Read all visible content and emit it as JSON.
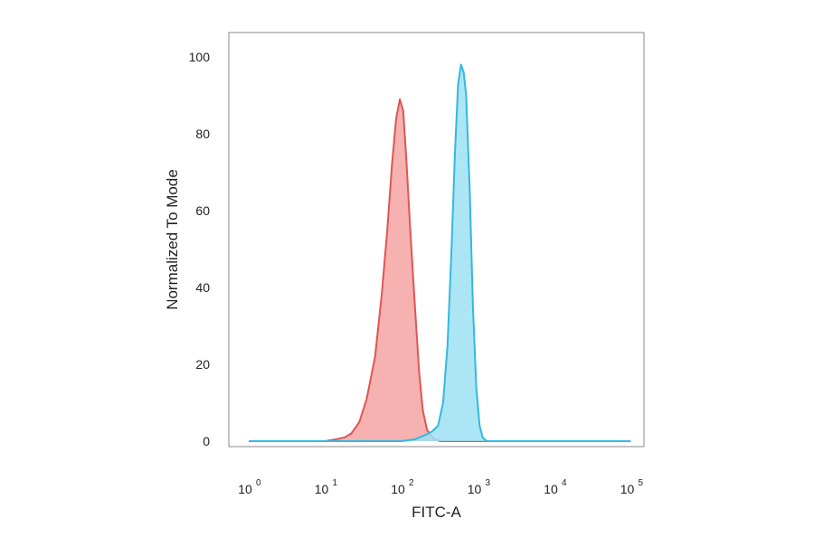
{
  "chart_data": {
    "type": "area",
    "xlabel": "FITC-A",
    "ylabel": "Normalized To Mode",
    "x_scale": "log",
    "xlim": [
      1,
      100000
    ],
    "ylim": [
      0,
      100
    ],
    "x_ticks": [
      {
        "base": "10",
        "exp": "0",
        "value": 1
      },
      {
        "base": "10",
        "exp": "1",
        "value": 10
      },
      {
        "base": "10",
        "exp": "2",
        "value": 100
      },
      {
        "base": "10",
        "exp": "3",
        "value": 1000
      },
      {
        "base": "10",
        "exp": "4",
        "value": 10000
      },
      {
        "base": "10",
        "exp": "5",
        "value": 100000
      }
    ],
    "y_ticks": [
      "0",
      "20",
      "40",
      "60",
      "80",
      "100"
    ],
    "grid": false,
    "series": [
      {
        "color": "#e05555",
        "fill": "#f4a3a3",
        "points": [
          [
            1,
            0
          ],
          [
            10,
            0
          ],
          [
            14,
            0.5
          ],
          [
            18,
            1
          ],
          [
            22,
            2
          ],
          [
            28,
            5
          ],
          [
            35,
            11
          ],
          [
            45,
            22
          ],
          [
            55,
            38
          ],
          [
            65,
            55
          ],
          [
            75,
            72
          ],
          [
            85,
            84
          ],
          [
            95,
            89
          ],
          [
            105,
            86
          ],
          [
            115,
            74
          ],
          [
            130,
            55
          ],
          [
            150,
            35
          ],
          [
            170,
            18
          ],
          [
            190,
            8
          ],
          [
            215,
            3
          ],
          [
            240,
            1.5
          ],
          [
            270,
            0.5
          ],
          [
            320,
            0
          ],
          [
            100000,
            0
          ]
        ]
      },
      {
        "color": "#33b9e0",
        "fill": "#9de0f2",
        "points": [
          [
            1,
            0
          ],
          [
            100,
            0
          ],
          [
            150,
            0.5
          ],
          [
            200,
            1.5
          ],
          [
            250,
            2.5
          ],
          [
            300,
            4
          ],
          [
            350,
            10
          ],
          [
            400,
            25
          ],
          [
            450,
            50
          ],
          [
            500,
            75
          ],
          [
            550,
            93
          ],
          [
            600,
            98
          ],
          [
            650,
            96
          ],
          [
            700,
            90
          ],
          [
            780,
            65
          ],
          [
            860,
            35
          ],
          [
            950,
            14
          ],
          [
            1050,
            4
          ],
          [
            1150,
            1
          ],
          [
            1300,
            0
          ],
          [
            100000,
            0
          ]
        ]
      }
    ]
  }
}
